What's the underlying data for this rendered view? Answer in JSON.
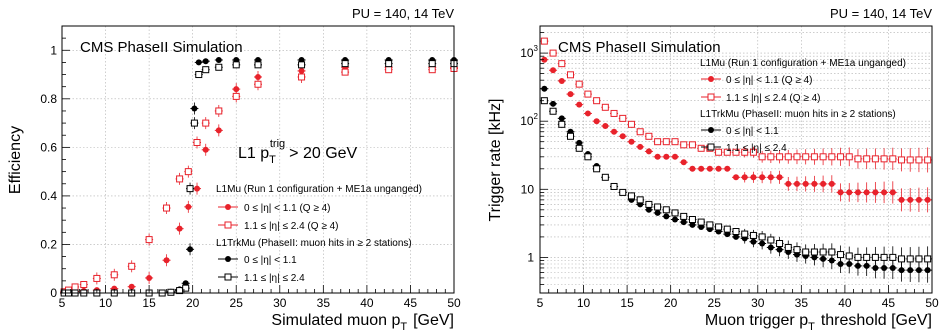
{
  "chart_data": [
    {
      "type": "scatter",
      "header": "PU = 140, 14 TeV",
      "annotation": "CMS PhaseII Simulation",
      "cut_label": "L1 p",
      "cut_sub": "T",
      "cut_sup": "trig",
      "cut_value": "> 20 GeV",
      "ylabel": "Efficiency",
      "xlabel": "Simulated muon p",
      "xlabel_sub": "T",
      "xlabel_unit": "[GeV]",
      "xlim": [
        5,
        50
      ],
      "ylim": [
        0,
        1.1
      ],
      "xticks": [
        "5",
        "10",
        "15",
        "20",
        "25",
        "30",
        "35",
        "40",
        "45",
        "50"
      ],
      "yticks": [
        "0",
        "0.2",
        "0.4",
        "0.6",
        "0.8",
        "1"
      ],
      "legend": {
        "group1": "L1Mu (Run 1 configuration + ME1a unganged)",
        "group2": "L1TrkMu (PhaseII: muon hits in ≥ 2 stations)",
        "entries": [
          "0   ≤  |η| < 1.1   (Q ≥ 4)",
          "1.1 ≤ |η|  ≤ 2.4 (Q ≥ 4)",
          "0   ≤  |η| < 1.1",
          "1.1 ≤ |η|  ≤ 2.4"
        ]
      },
      "series": [
        {
          "color": "#e8222b",
          "marker": "filled",
          "x": [
            5.25,
            5.75,
            6.5,
            7.5,
            9,
            11,
            13,
            15,
            17,
            18.5,
            19.5,
            20.5,
            21.5,
            23,
            25,
            27.5,
            32.5,
            37.5,
            42.5,
            47.5,
            50
          ],
          "y": [
            0.0,
            0.003,
            0.006,
            0.009,
            0.012,
            0.018,
            0.026,
            0.062,
            0.135,
            0.265,
            0.355,
            0.43,
            0.59,
            0.67,
            0.84,
            0.89,
            0.915,
            0.93,
            0.93,
            0.93,
            0.93
          ]
        },
        {
          "color": "#e8222b",
          "marker": "open",
          "x": [
            5.25,
            5.75,
            6.5,
            7.5,
            9,
            11,
            13,
            15,
            17,
            18.5,
            19.5,
            20.5,
            21.5,
            23,
            25,
            27.5,
            32.5,
            37.5,
            42.5,
            47.5,
            50
          ],
          "y": [
            0.005,
            0.012,
            0.025,
            0.035,
            0.06,
            0.075,
            0.11,
            0.22,
            0.35,
            0.47,
            0.5,
            0.62,
            0.7,
            0.75,
            0.81,
            0.86,
            0.89,
            0.91,
            0.92,
            0.92,
            0.925
          ]
        },
        {
          "color": "#000000",
          "marker": "filled",
          "x": [
            5.25,
            5.75,
            6.5,
            7.5,
            9,
            11,
            13,
            15,
            16.5,
            17.5,
            18.5,
            19.2,
            19.7,
            20.2,
            20.7,
            21.5,
            23,
            25,
            27.5,
            32.5,
            37.5,
            42.5,
            47.5,
            50
          ],
          "y": [
            0.0,
            0.0,
            0.0,
            0.0,
            0.0,
            0.0,
            0.0,
            0.0,
            0.0,
            0.005,
            0.015,
            0.04,
            0.18,
            0.76,
            0.95,
            0.955,
            0.96,
            0.96,
            0.96,
            0.96,
            0.96,
            0.96,
            0.96,
            0.96
          ]
        },
        {
          "color": "#000000",
          "marker": "open",
          "x": [
            5.25,
            5.75,
            6.5,
            7.5,
            9,
            11,
            13,
            15,
            16.5,
            17.5,
            18.5,
            19.2,
            19.7,
            20.2,
            20.7,
            21.5,
            23,
            25,
            27.5,
            32.5,
            37.5,
            42.5,
            47.5,
            50
          ],
          "y": [
            0.0,
            0.0,
            0.0,
            0.0,
            0.0,
            0.0,
            0.0,
            0.0,
            0.0,
            0.003,
            0.01,
            0.02,
            0.43,
            0.7,
            0.9,
            0.92,
            0.93,
            0.94,
            0.94,
            0.94,
            0.945,
            0.945,
            0.945,
            0.945
          ]
        }
      ]
    },
    {
      "type": "scatter",
      "header": "PU = 140, 14 TeV",
      "annotation": "CMS PhaseII Simulation",
      "ylabel": "Trigger rate [kHz]",
      "xlabel": "Muon trigger p",
      "xlabel_sub": "T",
      "xlabel_unit": "threshold [GeV]",
      "xlim": [
        5,
        50
      ],
      "ylim": [
        0.3,
        2500
      ],
      "yscale": "log",
      "xticks": [
        "5",
        "10",
        "15",
        "20",
        "25",
        "30",
        "35",
        "40",
        "45",
        "50"
      ],
      "yticks": [
        "1",
        "10",
        "10",
        "10"
      ],
      "yticks_sup": [
        "",
        "",
        "2",
        "3"
      ],
      "legend": {
        "group1": "L1Mu (Run 1 configuration + ME1a unganged)",
        "group2": "L1TrkMu (PhaseII: muon hits in ≥ 2 stations)",
        "entries": [
          "0   ≤  |η| < 1.1   (Q ≥ 4)",
          "1.1 ≤ |η|  ≤ 2.4 (Q ≥ 4)",
          "0   ≤  |η| < 1.1",
          "1.1 ≤ |η|  ≤ 2.4"
        ]
      },
      "series": [
        {
          "color": "#e8222b",
          "marker": "filled",
          "x": [
            5.5,
            6.5,
            7.5,
            8.5,
            9.5,
            10.5,
            11.5,
            12.5,
            13.5,
            14.5,
            15.5,
            16.5,
            17.5,
            18.5,
            19.5,
            20.5,
            21.5,
            22.5,
            23.5,
            24.5,
            25.5,
            26.5,
            27.5,
            28.5,
            29.5,
            30.5,
            31.5,
            32.5,
            33.5,
            34.5,
            35.5,
            36.5,
            37.5,
            38.5,
            39.5,
            40.5,
            41.5,
            42.5,
            43.5,
            44.5,
            45.5,
            46.5,
            47.5,
            48.5,
            49.5
          ],
          "y": [
            800,
            560,
            390,
            250,
            175,
            130,
            100,
            85,
            70,
            60,
            50,
            42,
            36,
            30,
            30,
            30,
            25,
            20,
            20,
            20,
            20,
            20,
            15,
            15,
            15,
            15,
            15,
            15,
            12,
            12,
            12,
            12,
            12,
            12,
            9,
            9,
            9,
            9,
            9,
            9,
            9,
            7,
            7,
            7,
            7
          ]
        },
        {
          "color": "#e8222b",
          "marker": "open",
          "x": [
            5.5,
            6.5,
            7.5,
            8.5,
            9.5,
            10.5,
            11.5,
            12.5,
            13.5,
            14.5,
            15.5,
            16.5,
            17.5,
            18.5,
            19.5,
            20.5,
            21.5,
            22.5,
            23.5,
            24.5,
            25.5,
            26.5,
            27.5,
            28.5,
            29.5,
            30.5,
            31.5,
            32.5,
            33.5,
            34.5,
            35.5,
            36.5,
            37.5,
            38.5,
            39.5,
            40.5,
            41.5,
            42.5,
            43.5,
            44.5,
            45.5,
            46.5,
            47.5,
            48.5,
            49.5
          ],
          "y": [
            1500,
            1000,
            700,
            480,
            350,
            250,
            200,
            160,
            130,
            110,
            90,
            70,
            60,
            50,
            50,
            50,
            45,
            45,
            40,
            40,
            35,
            35,
            35,
            35,
            35,
            30,
            30,
            30,
            30,
            30,
            30,
            30,
            30,
            30,
            30,
            30,
            28,
            28,
            28,
            28,
            28,
            27,
            27,
            27,
            27
          ]
        },
        {
          "color": "#000000",
          "marker": "filled",
          "x": [
            5.5,
            6.5,
            7.5,
            8.5,
            9.5,
            10.5,
            11.5,
            12.5,
            13.5,
            14.5,
            15.5,
            16.5,
            17.5,
            18.5,
            19.5,
            20.5,
            21.5,
            22.5,
            23.5,
            24.5,
            25.5,
            26.5,
            27.5,
            28.5,
            29.5,
            30.5,
            31.5,
            32.5,
            33.5,
            34.5,
            35.5,
            36.5,
            37.5,
            38.5,
            39.5,
            40.5,
            41.5,
            42.5,
            43.5,
            44.5,
            45.5,
            46.5,
            47.5,
            48.5,
            49.5
          ],
          "y": [
            300,
            180,
            110,
            70,
            48,
            33,
            22,
            15,
            11,
            9,
            7,
            6,
            5,
            4.5,
            4,
            3.6,
            3.3,
            3,
            2.8,
            2.6,
            2.4,
            2.2,
            2,
            1.9,
            1.7,
            1.6,
            1.4,
            1.3,
            1.2,
            1.1,
            1.05,
            1,
            0.95,
            0.9,
            0.8,
            0.8,
            0.75,
            0.75,
            0.7,
            0.7,
            0.7,
            0.65,
            0.65,
            0.65,
            0.65
          ]
        },
        {
          "color": "#000000",
          "marker": "open",
          "x": [
            5.5,
            6.5,
            7.5,
            8.5,
            9.5,
            10.5,
            11.5,
            12.5,
            13.5,
            14.5,
            15.5,
            16.5,
            17.5,
            18.5,
            19.5,
            20.5,
            21.5,
            22.5,
            23.5,
            24.5,
            25.5,
            26.5,
            27.5,
            28.5,
            29.5,
            30.5,
            31.5,
            32.5,
            33.5,
            34.5,
            35.5,
            36.5,
            37.5,
            38.5,
            39.5,
            40.5,
            41.5,
            42.5,
            43.5,
            44.5,
            45.5,
            46.5,
            47.5,
            48.5,
            49.5
          ],
          "y": [
            200,
            140,
            90,
            60,
            40,
            30,
            20,
            15,
            11,
            9,
            8,
            7,
            6,
            5.5,
            5,
            4.5,
            4,
            3.6,
            3.3,
            3,
            2.8,
            2.6,
            2.4,
            2.2,
            2.1,
            2,
            1.8,
            1.6,
            1.4,
            1.3,
            1.2,
            1.2,
            1.2,
            1.2,
            1.1,
            1.05,
            1,
            1,
            1,
            1,
            1,
            0.95,
            0.95,
            0.95,
            0.95
          ]
        }
      ]
    }
  ]
}
